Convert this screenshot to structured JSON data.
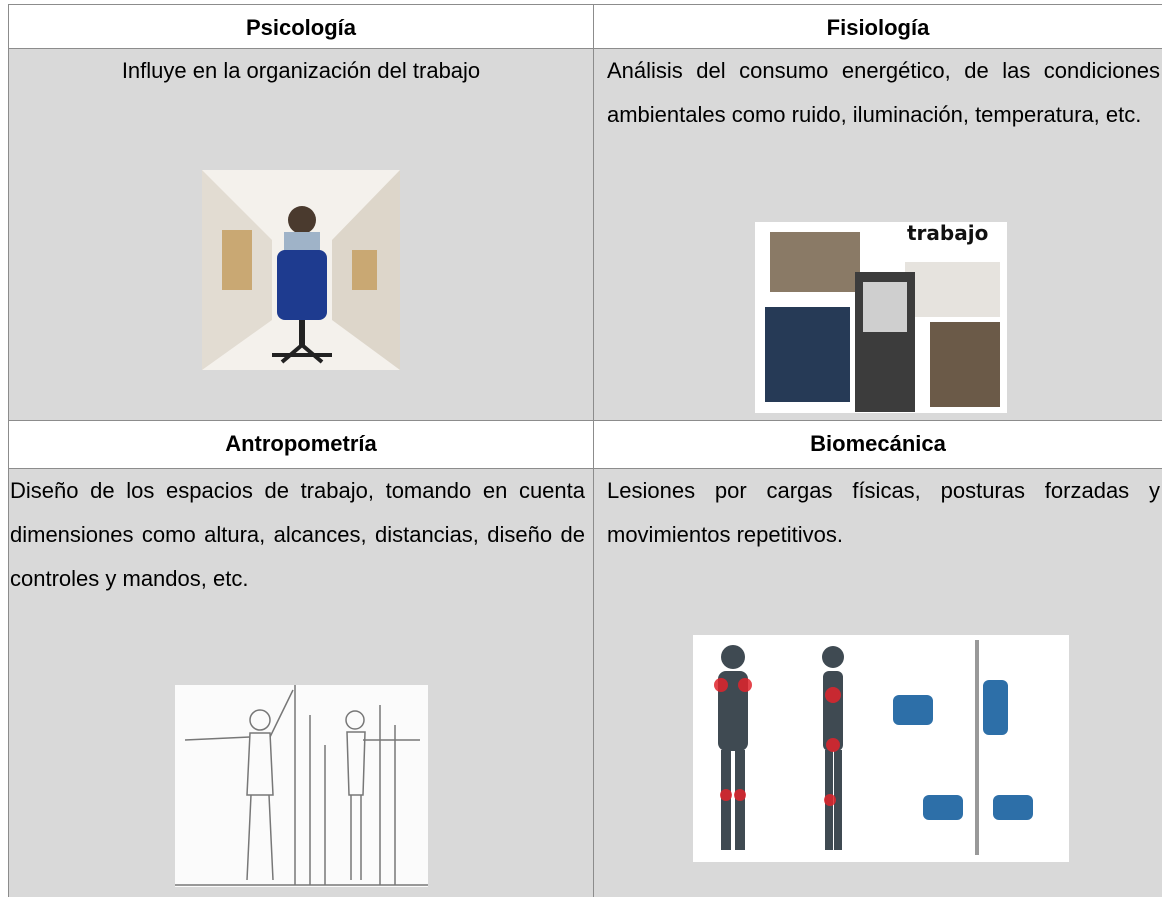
{
  "table": {
    "rows": [
      [
        "Psicología",
        "Fisiología"
      ],
      [
        "Influye en la organización del trabajo",
        "Análisis del consumo energético, de las condiciones ambientales como ruido, iluminación, temperatura, etc."
      ],
      [
        "Antropometría",
        "Biomecánica"
      ],
      [
        "Diseño de los espacios de trabajo, tomando en cuenta dimensiones como altura, alcances, distancias, diseño de controles y mandos, etc.",
        "Lesiones por cargas físicas, posturas forzadas y movimientos repetitivos."
      ]
    ]
  },
  "images": {
    "fisiologia_label": "trabajo"
  }
}
